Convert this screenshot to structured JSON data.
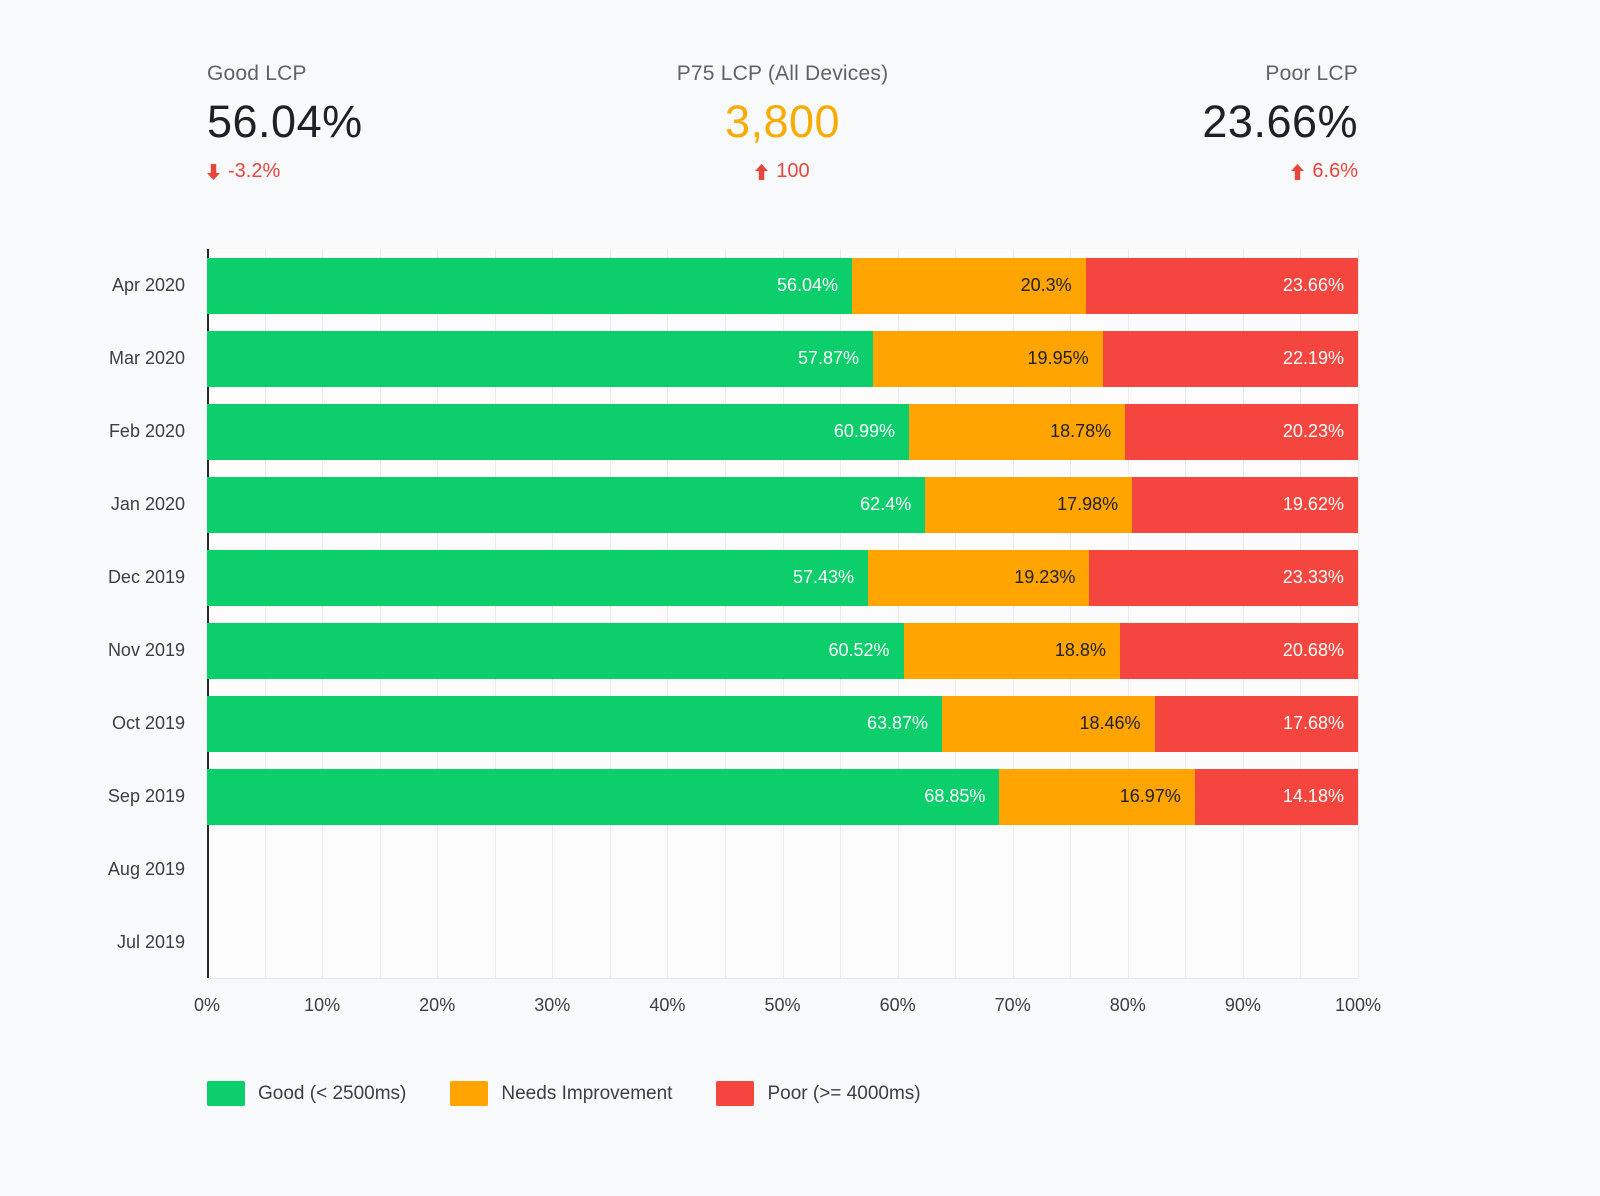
{
  "kpis": [
    {
      "label": "Good LCP",
      "value": "56.04%",
      "delta": "-3.2%",
      "direction": "down"
    },
    {
      "label": "P75 LCP (All Devices)",
      "value": "3,800",
      "delta": "100",
      "direction": "up"
    },
    {
      "label": "Poor LCP",
      "value": "23.66%",
      "delta": "6.6%",
      "direction": "up"
    }
  ],
  "colors": {
    "kpi_value": "#202124",
    "kpi_label": "#5F6368",
    "p75_value": "#F9AB00",
    "delta": "#E8453C",
    "axis_text": "#3C4043",
    "background": "#F8F9FA"
  },
  "chart_data": {
    "type": "bar",
    "orientation": "horizontal",
    "stacked": true,
    "unit": "%",
    "xlim": [
      0,
      100
    ],
    "grid_step": 5,
    "grid": true,
    "legend_position": "bottom",
    "x_tick_values": [
      0,
      10,
      20,
      30,
      40,
      50,
      60,
      70,
      80,
      90,
      100
    ],
    "categories": [
      "Apr 2020",
      "Mar 2020",
      "Feb 2020",
      "Jan 2020",
      "Dec 2019",
      "Nov 2019",
      "Oct 2019",
      "Sep 2019",
      "Aug 2019",
      "Jul 2019"
    ],
    "series": [
      {
        "key": "good",
        "name": "Good (< 2500ms)",
        "color": "#0CCE6B",
        "label_color": "#FFFFFF",
        "values": [
          56.04,
          57.87,
          60.99,
          62.4,
          57.43,
          60.52,
          63.87,
          68.85,
          null,
          null
        ]
      },
      {
        "key": "needs-improvement",
        "name": "Needs Improvement",
        "color": "#FFA400",
        "label_color": "#212121",
        "values": [
          20.3,
          19.95,
          18.78,
          17.98,
          19.23,
          18.8,
          18.46,
          16.97,
          null,
          null
        ]
      },
      {
        "key": "poor",
        "name": "Poor (>= 4000ms)",
        "color": "#F4453E",
        "label_color": "#FFFFFF",
        "values": [
          23.66,
          22.19,
          20.23,
          19.62,
          23.33,
          20.68,
          17.68,
          14.18,
          null,
          null
        ]
      }
    ]
  }
}
